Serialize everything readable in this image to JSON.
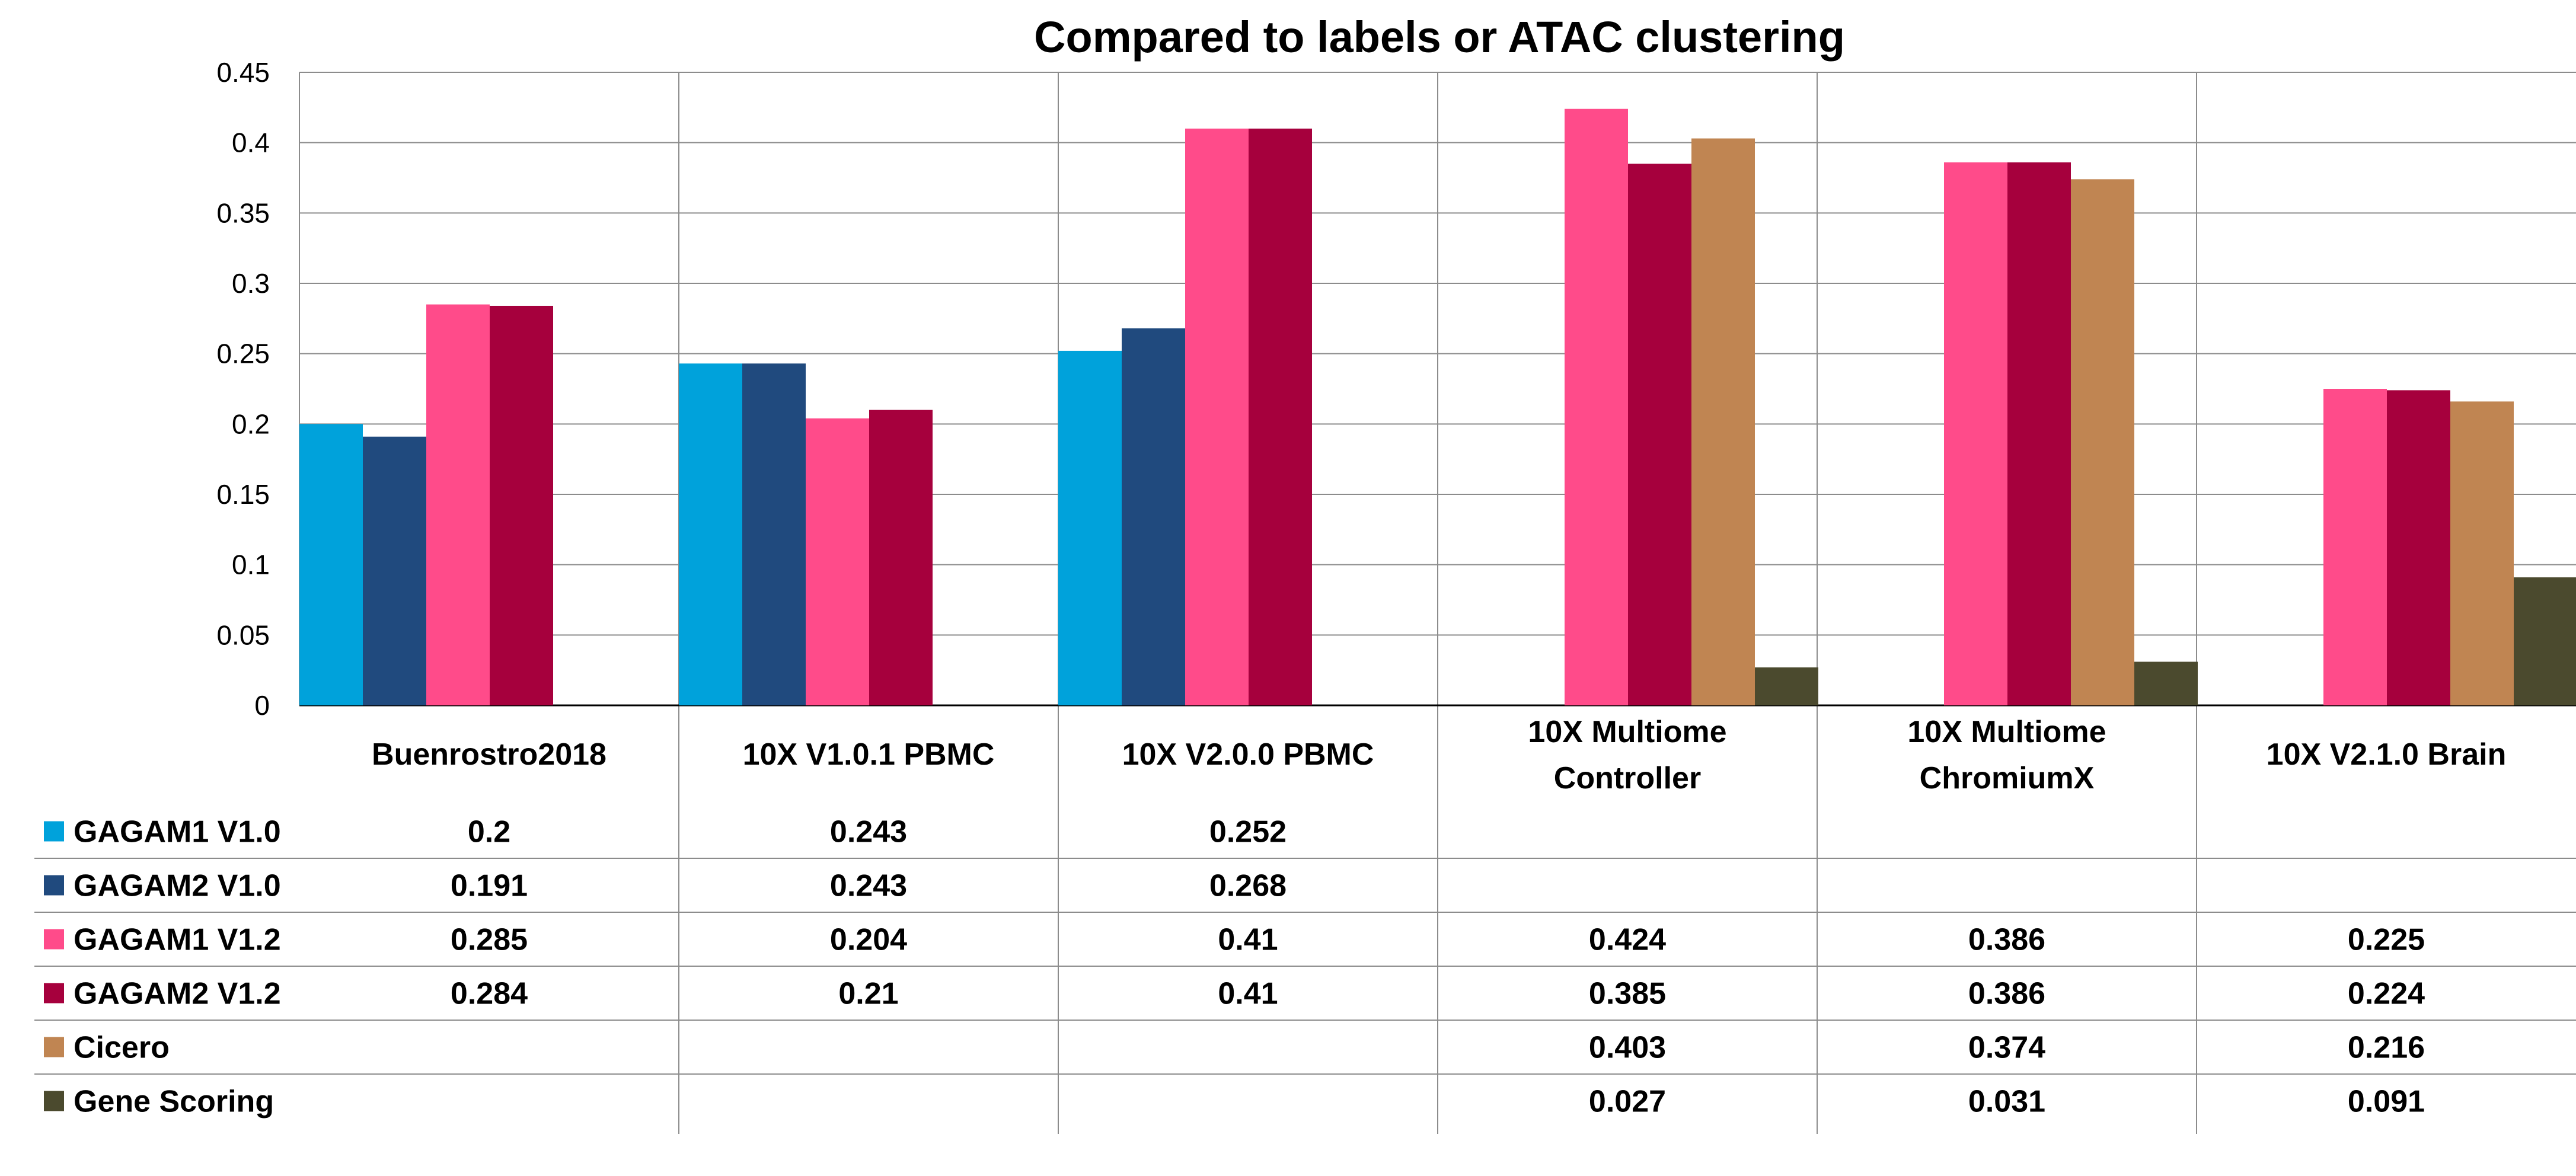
{
  "chart_data": {
    "type": "bar",
    "title": "Compared to labels or ATAC clustering",
    "xlabel": "",
    "ylabel": "",
    "ylim": [
      0,
      0.45
    ],
    "yticks": [
      "0",
      "0.05",
      "0.1",
      "0.15",
      "0.2",
      "0.25",
      "0.3",
      "0.35",
      "0.4",
      "0.45"
    ],
    "grid": true,
    "legend_placement": "data-table-left",
    "categories": [
      "Buenrostro2018",
      "10X V1.0.1 PBMC",
      "10X V2.0.0 PBMC",
      "10X Multiome Controller",
      "10X Multiome ChromiumX",
      "10X V2.1.0 Brain"
    ],
    "series": [
      {
        "name": "GAGAM1 V1.0",
        "color": "#00A2DB",
        "values": [
          0.2,
          0.243,
          0.252,
          null,
          null,
          null
        ],
        "labels": [
          "0.2",
          "0.243",
          "0.252",
          "",
          "",
          ""
        ]
      },
      {
        "name": "GAGAM2 V1.0",
        "color": "#204A7E",
        "values": [
          0.191,
          0.243,
          0.268,
          null,
          null,
          null
        ],
        "labels": [
          "0.191",
          "0.243",
          "0.268",
          "",
          "",
          ""
        ]
      },
      {
        "name": "GAGAM1 V1.2",
        "color": "#FF4B8A",
        "values": [
          0.285,
          0.204,
          0.41,
          0.424,
          0.386,
          0.225
        ],
        "labels": [
          "0.285",
          "0.204",
          "0.41",
          "0.424",
          "0.386",
          "0.225"
        ]
      },
      {
        "name": "GAGAM2 V1.2",
        "color": "#A6003D",
        "values": [
          0.284,
          0.21,
          0.41,
          0.385,
          0.386,
          0.224
        ],
        "labels": [
          "0.284",
          "0.21",
          "0.41",
          "0.385",
          "0.386",
          "0.224"
        ]
      },
      {
        "name": "Cicero",
        "color": "#C08552",
        "values": [
          null,
          null,
          null,
          0.403,
          0.374,
          0.216
        ],
        "labels": [
          "",
          "",
          "",
          "0.403",
          "0.374",
          "0.216"
        ]
      },
      {
        "name": "Gene Scoring",
        "color": "#4B4A2E",
        "values": [
          null,
          null,
          null,
          0.027,
          0.031,
          0.091
        ],
        "labels": [
          "",
          "",
          "",
          "0.027",
          "0.031",
          "0.091"
        ]
      }
    ]
  }
}
